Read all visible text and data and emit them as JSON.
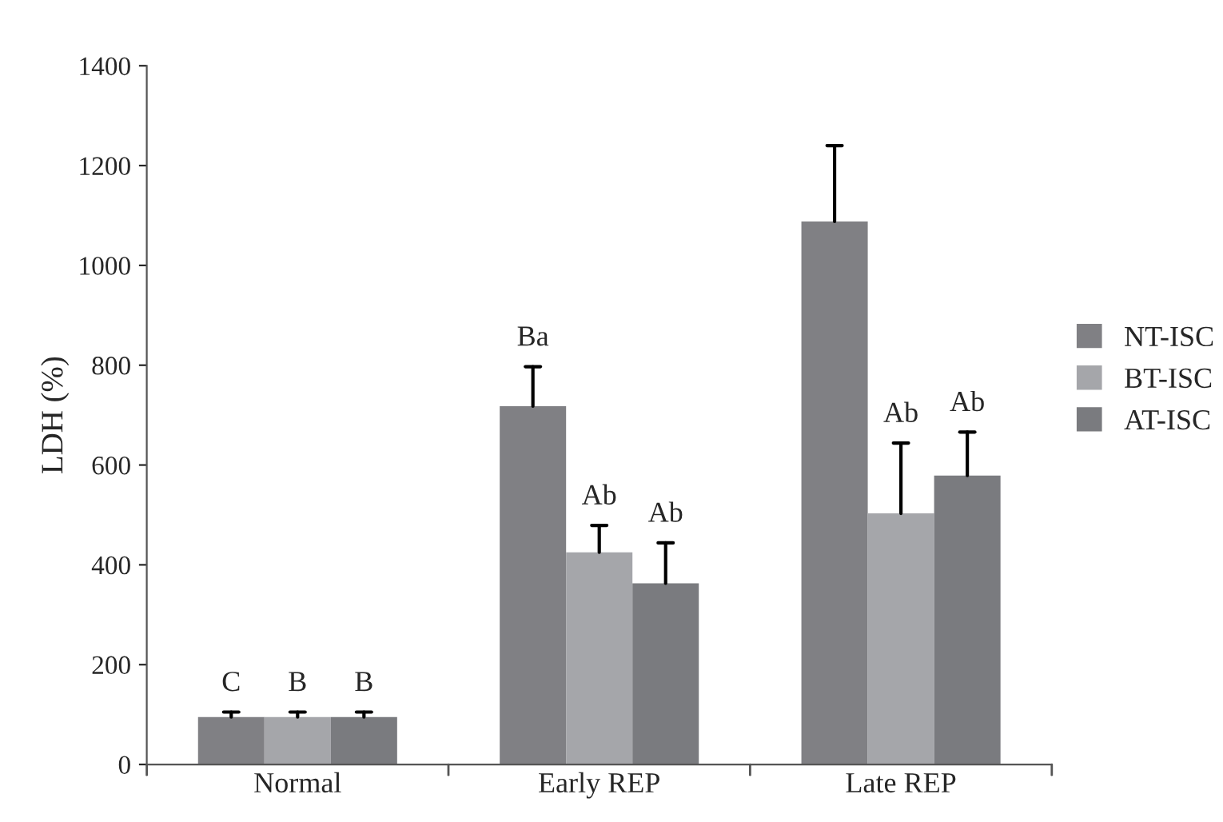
{
  "chart_data": {
    "type": "bar",
    "ylabel": "LDH (%)",
    "categories": [
      "Normal",
      "Early REP",
      "Late REP"
    ],
    "series": [
      {
        "name": "NT-ISC",
        "color": "#808084",
        "values": [
          95,
          718,
          1088
        ],
        "errors": [
          [
            95,
            105
          ],
          [
            718,
            797
          ],
          [
            1088,
            1240
          ]
        ]
      },
      {
        "name": "BT-ISC",
        "color": "#a5a6aa",
        "values": [
          95,
          425,
          503
        ],
        "errors": [
          [
            95,
            105
          ],
          [
            425,
            479
          ],
          [
            503,
            644
          ]
        ]
      },
      {
        "name": "AT-ISC",
        "color": "#7a7b7f",
        "values": [
          95,
          363,
          579
        ],
        "errors": [
          [
            95,
            105
          ],
          [
            363,
            444
          ],
          [
            579,
            666
          ]
        ]
      }
    ],
    "annotations": [
      "C",
      "B",
      "B",
      "Ba",
      "Ab",
      "Ab",
      null,
      "Ab",
      "Ab"
    ],
    "ylim": [
      0,
      1400
    ],
    "yticks": [
      0,
      200,
      400,
      600,
      800,
      1000,
      1200,
      1400
    ],
    "grid": false,
    "legend": "right"
  }
}
